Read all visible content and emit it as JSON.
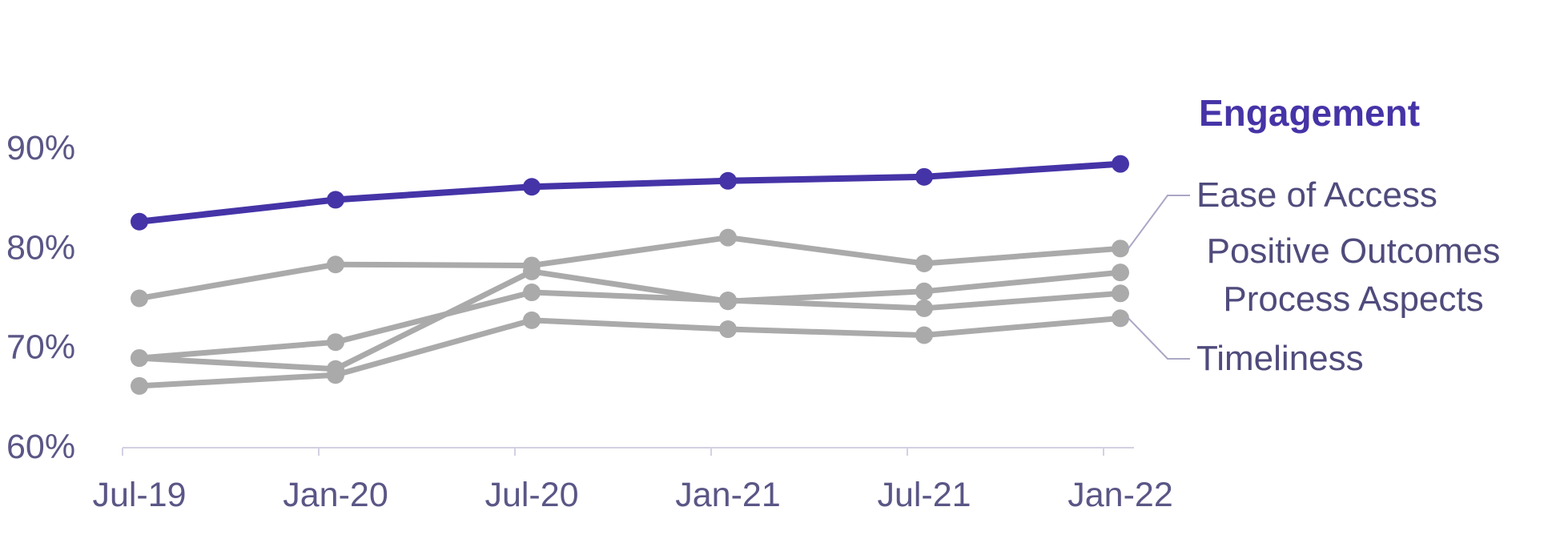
{
  "chart_data": {
    "type": "line",
    "categories": [
      "Jul-19",
      "Jan-20",
      "Jul-20",
      "Jan-21",
      "Jul-21",
      "Jan-22"
    ],
    "ylim": [
      60,
      90
    ],
    "yticks": [
      {
        "value": 90,
        "label": "90%"
      },
      {
        "value": 80,
        "label": "80%"
      },
      {
        "value": 70,
        "label": "70%"
      },
      {
        "value": 60,
        "label": "60%"
      }
    ],
    "grid": false,
    "series": [
      {
        "name": "Engagement",
        "values": [
          82.7,
          84.9,
          86.2,
          86.8,
          87.2,
          88.5
        ],
        "color": "#4534a7",
        "highlight": true
      },
      {
        "name": "Ease of Access",
        "values": [
          75.0,
          78.4,
          78.3,
          81.1,
          78.5,
          80.0
        ],
        "color": "#aaaaaa",
        "highlight": false
      },
      {
        "name": "Positive Outcomes",
        "values": [
          69.0,
          67.9,
          77.7,
          74.7,
          75.7,
          77.6
        ],
        "color": "#aaaaaa",
        "highlight": false
      },
      {
        "name": "Process Aspects",
        "values": [
          69.0,
          70.6,
          75.6,
          74.8,
          74.0,
          75.5
        ],
        "color": "#aaaaaa",
        "highlight": false
      },
      {
        "name": "Timeliness",
        "values": [
          66.2,
          67.3,
          72.8,
          71.9,
          71.3,
          73.0
        ],
        "color": "#aaaaaa",
        "highlight": false
      }
    ]
  },
  "colors": {
    "axis_text": "#5a5686",
    "axis_line": "#d3d1e2",
    "label_text": "#4f4b7c",
    "leader_line": "#aaa7c5"
  }
}
